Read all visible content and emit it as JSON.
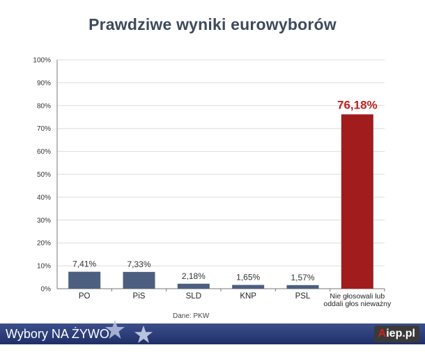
{
  "header": {
    "title": "Prawdziwe wyniki eurowyborów"
  },
  "source_note": "Dane: PKW",
  "footer": {
    "text": "Wybory NA ŻYWO",
    "logo_text": "iep.pl",
    "logo_accent": "A",
    "brand_color": "#2a3c7a"
  },
  "colors": {
    "normal_bar": "#4d5f80",
    "highlight_bar": "#a11c1c",
    "highlight_label": "#c0201f",
    "grid": "#dcdcdc",
    "axis": "#777777"
  },
  "chart_data": {
    "type": "bar",
    "title": "Prawdziwe wyniki eurowyborów",
    "xlabel": "",
    "ylabel": "",
    "ylim": [
      0,
      100
    ],
    "yticks": [
      "0%",
      "10%",
      "20%",
      "30%",
      "40%",
      "50%",
      "60%",
      "70%",
      "80%",
      "90%",
      "100%"
    ],
    "categories": [
      {
        "name": "PO",
        "lines": [
          "PO"
        ]
      },
      {
        "name": "PiS",
        "lines": [
          "PiS"
        ]
      },
      {
        "name": "SLD",
        "lines": [
          "SLD"
        ]
      },
      {
        "name": "KNP",
        "lines": [
          "KNP"
        ]
      },
      {
        "name": "PSL",
        "lines": [
          "PSL"
        ]
      },
      {
        "name": "Nie głosowali lub oddali głos nieważny",
        "lines": [
          "Nie głosowali lub",
          "oddali głos nieważny"
        ]
      }
    ],
    "values": [
      7.41,
      7.33,
      2.18,
      1.65,
      1.57,
      76.18
    ],
    "value_labels": [
      "7,41%",
      "7,33%",
      "2,18%",
      "1,65%",
      "1,57%",
      "76,18%"
    ],
    "highlight_index": 5,
    "grid": true
  }
}
